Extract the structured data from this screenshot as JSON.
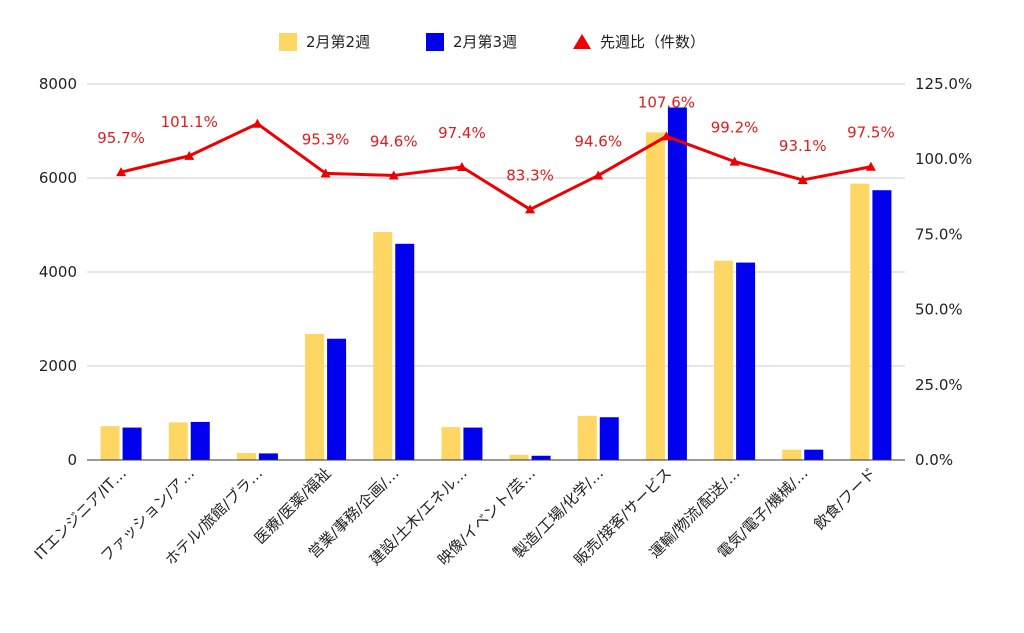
{
  "chart_data": {
    "type": "bar",
    "categories": [
      "ITエンジニア/IT…",
      "ファッション/ア…",
      "ホテル/旅館/ブラ…",
      "医療/医薬/福祉",
      "営業/事務/企画/…",
      "建設/土木/エネル…",
      "映像/イベント/芸…",
      "製造/工場/化学/…",
      "販売/接客/サービス",
      "運輸/物流/配送/…",
      "電気/電子/機械/…",
      "飲食/フード"
    ],
    "series": [
      {
        "name": "2月第2週",
        "type": "bar",
        "axis": "left",
        "color": "#fdd663",
        "values": [
          720,
          800,
          150,
          2680,
          4850,
          700,
          110,
          940,
          6970,
          4240,
          220,
          5880
        ]
      },
      {
        "name": "2月第3週",
        "type": "bar",
        "axis": "left",
        "color": "#0000ee",
        "values": [
          690,
          810,
          140,
          2580,
          4600,
          690,
          90,
          910,
          7500,
          4200,
          220,
          5740
        ]
      },
      {
        "name": "先週比（件数）",
        "type": "line",
        "axis": "right",
        "color": "#ee0000",
        "marker": "triangle",
        "values": [
          95.7,
          101.1,
          111.8,
          95.3,
          94.6,
          97.4,
          83.3,
          94.6,
          107.6,
          99.2,
          93.1,
          97.5
        ],
        "labels": [
          "95.7%",
          "101.1%",
          "",
          "95.3%",
          "94.6%",
          "97.4%",
          "83.3%",
          "94.6%",
          "107.6%",
          "99.2%",
          "93.1%",
          "97.5%"
        ]
      }
    ],
    "y_left": {
      "range": [
        0,
        8000
      ],
      "ticks": [
        "0",
        "2000",
        "4000",
        "6000",
        "8000"
      ]
    },
    "y_right": {
      "range": [
        0,
        125
      ],
      "ticks": [
        "0.0%",
        "25.0%",
        "50.0%",
        "75.0%",
        "100.0%",
        "125.0%"
      ]
    },
    "grid": true,
    "legend_position": "top-center",
    "title": "",
    "xlabel": "",
    "ylabel": ""
  }
}
